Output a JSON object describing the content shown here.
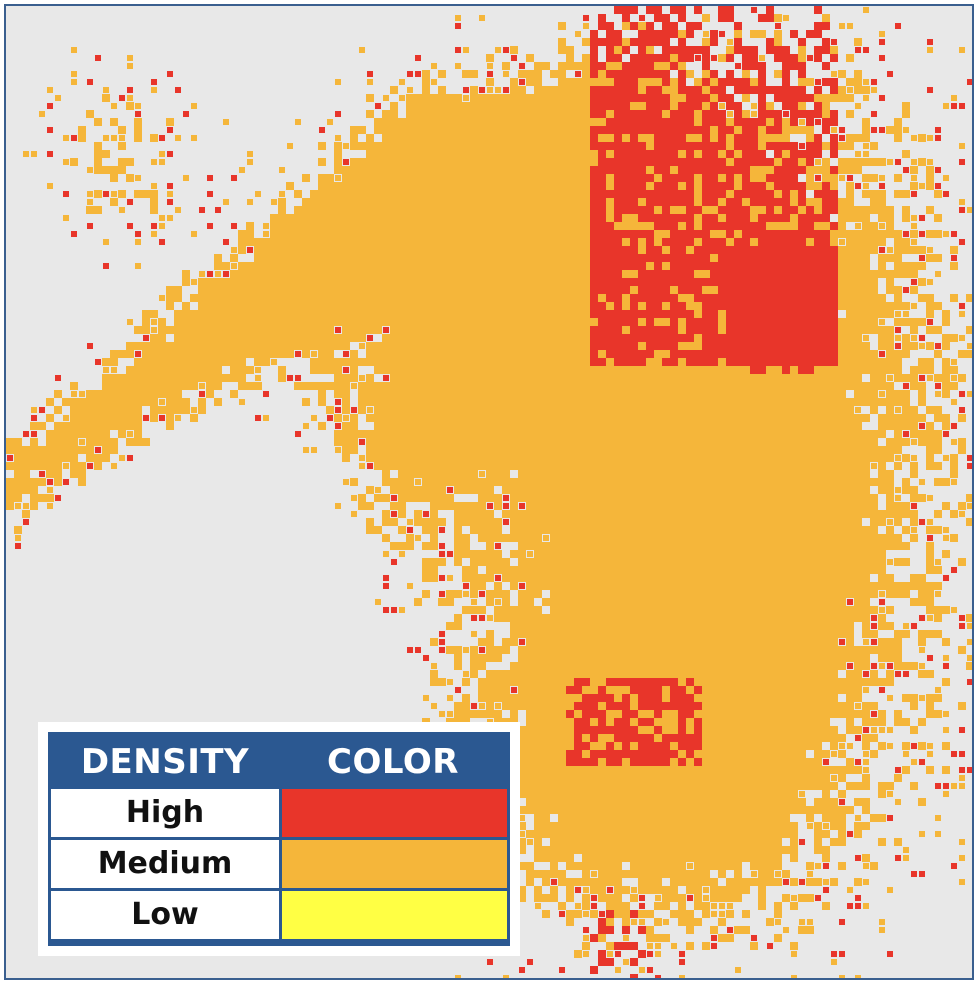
{
  "legend": {
    "header_density": "DENSITY",
    "header_color": "COLOR",
    "rows": [
      {
        "label": "High",
        "color": "#e8352a"
      },
      {
        "label": "Medium",
        "color": "#f5b63a"
      },
      {
        "label": "Low",
        "color": "#ffff44"
      }
    ]
  },
  "map_colors": {
    "background": "#e8e8e8",
    "high": "#e8352a",
    "medium": "#f5b63a",
    "frame": "#3a5f8f"
  }
}
